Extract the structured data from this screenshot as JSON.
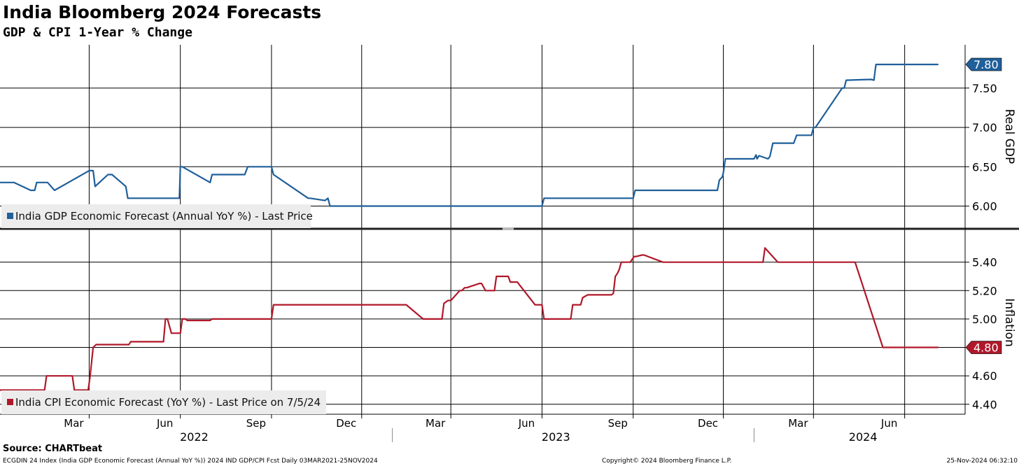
{
  "title": "India Bloomberg 2024 Forecasts",
  "subtitle": "GDP & CPI 1-Year % Change",
  "source": "Source: CHARTbeat",
  "footer": {
    "left": "ECGDIN 24 Index (India GDP Economic Forecast (Annual YoY %)) 2024 IND GDP/CPI Fcst  Daily 03MAR2021-25NOV2024",
    "center": "Copyright© 2024 Bloomberg Finance L.P.",
    "right": "25-Nov-2024 06:32:10"
  },
  "colors": {
    "gdp": "#1f5f9a",
    "cpi": "#b0182a",
    "grid": "#000000",
    "legend_bg": "#ececec"
  },
  "chart_data": [
    {
      "type": "line",
      "ylabel": "Real GDP",
      "yticks": [
        6.0,
        6.5,
        7.0,
        7.5
      ],
      "ylim": [
        5.72,
        8.05
      ],
      "legend": "India GDP Economic Forecast (Annual YoY %) - Last Price",
      "last_value": "7.80",
      "series": [
        {
          "name": "India GDP Economic Forecast (Annual YoY %) - Last Price",
          "x": [
            "2021-12-01",
            "2021-12-15",
            "2022-01-01",
            "2022-01-05",
            "2022-01-07",
            "2022-01-18",
            "2022-01-25",
            "2022-02-08",
            "2022-03-01",
            "2022-03-05",
            "2022-03-07",
            "2022-03-20",
            "2022-03-24",
            "2022-04-07",
            "2022-04-09",
            "2022-05-31",
            "2022-06-01",
            "2022-06-03",
            "2022-07-01",
            "2022-07-03",
            "2022-08-05",
            "2022-08-08",
            "2022-09-01",
            "2022-09-03",
            "2022-10-08",
            "2022-10-10",
            "2022-10-25",
            "2022-10-28",
            "2022-10-30",
            "2023-06-01",
            "2023-06-03",
            "2023-09-01",
            "2023-09-03",
            "2023-11-25",
            "2023-11-27",
            "2023-11-30",
            "2023-12-01",
            "2023-12-03",
            "2024-01-01",
            "2024-01-03",
            "2024-01-04",
            "2024-01-06",
            "2024-01-15",
            "2024-01-17",
            "2024-01-20",
            "2024-02-10",
            "2024-02-13",
            "2024-02-28",
            "2024-03-01",
            "2024-03-03",
            "2024-03-30",
            "2024-04-01",
            "2024-04-03",
            "2024-04-28",
            "2024-05-01",
            "2024-05-03",
            "2024-07-05"
          ],
          "values": [
            6.3,
            6.3,
            6.2,
            6.2,
            6.3,
            6.3,
            6.2,
            6.3,
            6.45,
            6.45,
            6.25,
            6.4,
            6.4,
            6.25,
            6.1,
            6.1,
            6.5,
            6.5,
            6.3,
            6.4,
            6.4,
            6.5,
            6.5,
            6.4,
            6.1,
            6.1,
            6.07,
            6.1,
            6.0,
            6.0,
            6.1,
            6.1,
            6.2,
            6.2,
            6.33,
            6.37,
            6.42,
            6.6,
            6.6,
            6.65,
            6.6,
            6.64,
            6.6,
            6.63,
            6.8,
            6.8,
            6.9,
            6.9,
            7.0,
            7.0,
            7.5,
            7.5,
            7.6,
            7.61,
            7.6,
            7.8,
            7.8
          ]
        }
      ]
    },
    {
      "type": "line",
      "ylabel": "Inflation",
      "yticks": [
        4.4,
        4.6,
        4.8,
        5.0,
        5.2,
        5.4
      ],
      "ylim": [
        4.33,
        5.62
      ],
      "legend": "India CPI Economic Forecast (YoY %) - Last Price on 7/5/24",
      "last_value": "4.80",
      "series": [
        {
          "name": "India CPI Economic Forecast (YoY %) - Last Price on 7/5/24",
          "x": [
            "2021-12-01",
            "2022-01-15",
            "2022-01-17",
            "2022-02-12",
            "2022-02-14",
            "2022-02-28",
            "2022-03-02",
            "2022-03-05",
            "2022-03-08",
            "2022-04-10",
            "2022-04-12",
            "2022-05-15",
            "2022-05-17",
            "2022-05-19",
            "2022-05-23",
            "2022-05-25",
            "2022-06-01",
            "2022-06-03",
            "2022-06-06",
            "2022-06-08",
            "2022-07-01",
            "2022-07-03",
            "2022-09-01",
            "2022-09-03",
            "2023-01-15",
            "2023-02-01",
            "2023-02-20",
            "2023-02-22",
            "2023-02-26",
            "2023-03-01",
            "2023-03-10",
            "2023-03-12",
            "2023-03-15",
            "2023-03-17",
            "2023-03-30",
            "2023-04-01",
            "2023-04-05",
            "2023-04-07",
            "2023-04-14",
            "2023-04-16",
            "2023-04-28",
            "2023-04-30",
            "2023-05-05",
            "2023-05-07",
            "2023-05-25",
            "2023-05-27",
            "2023-06-01",
            "2023-06-03",
            "2023-06-30",
            "2023-07-02",
            "2023-07-10",
            "2023-07-12",
            "2023-07-17",
            "2023-07-19",
            "2023-08-10",
            "2023-08-12",
            "2023-08-14",
            "2023-08-16",
            "2023-08-18",
            "2023-08-20",
            "2023-08-29",
            "2023-09-02",
            "2023-09-04",
            "2023-09-10",
            "2023-09-12",
            "2023-10-01",
            "2023-10-03",
            "2023-12-10",
            "2023-12-12",
            "2024-01-10",
            "2024-01-12",
            "2024-01-25",
            "2024-03-01",
            "2024-04-10",
            "2024-04-12",
            "2024-05-10",
            "2024-05-12",
            "2024-07-05"
          ],
          "values": [
            4.5,
            4.5,
            4.6,
            4.6,
            4.5,
            4.5,
            4.6,
            4.8,
            4.82,
            4.82,
            4.84,
            4.84,
            5.0,
            5.0,
            4.9,
            4.9,
            4.9,
            5.0,
            5.0,
            4.99,
            4.99,
            5.0,
            5.0,
            5.1,
            5.1,
            5.0,
            5.0,
            5.11,
            5.13,
            5.13,
            5.2,
            5.2,
            5.22,
            5.22,
            5.25,
            5.25,
            5.2,
            5.2,
            5.2,
            5.3,
            5.3,
            5.26,
            5.26,
            5.26,
            5.1,
            5.1,
            5.1,
            5.0,
            5.0,
            5.1,
            5.1,
            5.15,
            5.17,
            5.17,
            5.17,
            5.18,
            5.3,
            5.32,
            5.35,
            5.4,
            5.4,
            5.44,
            5.44,
            5.45,
            5.45,
            5.4,
            5.4,
            5.4,
            5.4,
            5.4,
            5.5,
            5.4,
            5.4,
            5.4,
            5.4,
            4.8,
            4.8,
            4.8
          ]
        }
      ]
    }
  ],
  "x_axis": {
    "month_ticks": [
      "Mar",
      "Jun",
      "Sep",
      "Dec",
      "Mar",
      "Jun",
      "Sep",
      "Dec",
      "Mar",
      "Jun"
    ],
    "tick_dates": [
      "2022-03-01",
      "2022-06-01",
      "2022-09-01",
      "2022-12-01",
      "2023-03-01",
      "2023-06-01",
      "2023-09-01",
      "2023-12-01",
      "2024-03-01",
      "2024-06-01"
    ],
    "year_labels": [
      "2022",
      "2023",
      "2024"
    ],
    "range": [
      "2021-12-01",
      "2024-08-01"
    ]
  }
}
